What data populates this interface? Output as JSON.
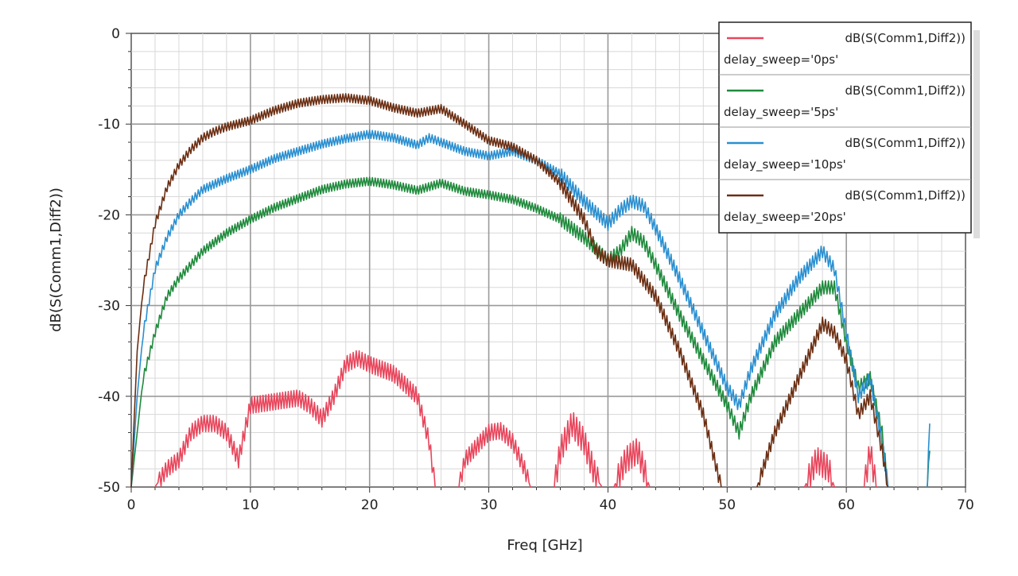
{
  "chart_data": {
    "type": "line",
    "title": "",
    "xlabel": "Freq [GHz]",
    "ylabel": "dB(S(Comm1,Diff2))",
    "xlim": [
      0,
      70
    ],
    "ylim": [
      -50,
      0
    ],
    "xticks": [
      "0",
      "10",
      "20",
      "30",
      "40",
      "50",
      "60",
      "70"
    ],
    "yticks": [
      "0",
      "-10",
      "-20",
      "-30",
      "-40",
      "-50"
    ],
    "grid": true,
    "legend_position": "top-right",
    "series": [
      {
        "name": "dB(S(Comm1,Diff2))",
        "param": "delay_sweep='0ps'",
        "color": "#e8465c",
        "points": [
          [
            2,
            -50
          ],
          [
            3,
            -48
          ],
          [
            4,
            -47
          ],
          [
            5,
            -44
          ],
          [
            6,
            -43
          ],
          [
            7,
            -43
          ],
          [
            8,
            -44
          ],
          [
            9,
            -47
          ],
          [
            9.5,
            -44
          ],
          [
            10,
            -41
          ],
          [
            12,
            -40.6
          ],
          [
            14,
            -40.2
          ],
          [
            15,
            -41
          ],
          [
            16,
            -42.5
          ],
          [
            17,
            -40
          ],
          [
            18,
            -36.5
          ],
          [
            19,
            -35.8
          ],
          [
            20,
            -36.5
          ],
          [
            22,
            -37.5
          ],
          [
            24,
            -40
          ],
          [
            25,
            -45
          ],
          [
            25.5,
            -50
          ],
          null,
          [
            27.5,
            -50
          ],
          [
            28,
            -47
          ],
          [
            30,
            -44
          ],
          [
            31,
            -43.8
          ],
          [
            32,
            -45
          ],
          [
            33,
            -48
          ],
          [
            33.5,
            -50
          ],
          null,
          [
            35.5,
            -50
          ],
          [
            36,
            -46
          ],
          [
            37,
            -43
          ],
          [
            38,
            -45
          ],
          [
            39,
            -49
          ],
          [
            39.5,
            -50
          ],
          null,
          [
            40.5,
            -50
          ],
          [
            41.5,
            -47
          ],
          [
            42.5,
            -46
          ],
          [
            43.5,
            -50
          ],
          null,
          [
            56.5,
            -50
          ],
          [
            57.5,
            -47
          ],
          [
            58.5,
            -48
          ],
          [
            59,
            -50
          ],
          null,
          [
            61.5,
            -50
          ],
          [
            62,
            -46
          ],
          [
            62.5,
            -50
          ]
        ]
      },
      {
        "name": "dB(S(Comm1,Diff2))",
        "param": "delay_sweep='5ps'",
        "color": "#1f8a3c",
        "points": [
          [
            0,
            -50
          ],
          [
            1,
            -38
          ],
          [
            2,
            -33
          ],
          [
            3,
            -29
          ],
          [
            4,
            -27
          ],
          [
            5,
            -25.5
          ],
          [
            6,
            -24
          ],
          [
            8,
            -22
          ],
          [
            10,
            -20.5
          ],
          [
            12,
            -19.2
          ],
          [
            14,
            -18.2
          ],
          [
            16,
            -17.2
          ],
          [
            18,
            -16.6
          ],
          [
            20,
            -16.3
          ],
          [
            22,
            -16.7
          ],
          [
            24,
            -17.3
          ],
          [
            26,
            -16.5
          ],
          [
            28,
            -17.4
          ],
          [
            30,
            -17.8
          ],
          [
            32,
            -18.3
          ],
          [
            34,
            -19.3
          ],
          [
            36,
            -20.5
          ],
          [
            38,
            -22.5
          ],
          [
            40,
            -25
          ],
          [
            41,
            -24
          ],
          [
            42,
            -22
          ],
          [
            43,
            -23
          ],
          [
            44,
            -25.5
          ],
          [
            46,
            -31
          ],
          [
            48,
            -36
          ],
          [
            50,
            -41
          ],
          [
            51,
            -44
          ],
          [
            52,
            -40
          ],
          [
            54,
            -34
          ],
          [
            56,
            -31
          ],
          [
            58,
            -28
          ],
          [
            59,
            -28
          ],
          [
            60,
            -34
          ],
          [
            61,
            -39
          ],
          [
            62,
            -38
          ],
          [
            63,
            -44
          ],
          [
            63.5,
            -50
          ],
          null,
          [
            66.8,
            -50
          ],
          [
            67,
            -46
          ]
        ]
      },
      {
        "name": "dB(S(Comm1,Diff2))",
        "param": "delay_sweep='10ps'",
        "color": "#2a8fd0",
        "points": [
          [
            0,
            -50
          ],
          [
            0.5,
            -40
          ],
          [
            1,
            -33
          ],
          [
            2,
            -26
          ],
          [
            3,
            -22.5
          ],
          [
            4,
            -20
          ],
          [
            5,
            -18.5
          ],
          [
            6,
            -17.2
          ],
          [
            8,
            -16
          ],
          [
            10,
            -15
          ],
          [
            12,
            -13.8
          ],
          [
            14,
            -13
          ],
          [
            16,
            -12.2
          ],
          [
            18,
            -11.6
          ],
          [
            20,
            -11.1
          ],
          [
            22,
            -11.5
          ],
          [
            24,
            -12.3
          ],
          [
            25,
            -11.5
          ],
          [
            26,
            -12
          ],
          [
            28,
            -13
          ],
          [
            30,
            -13.5
          ],
          [
            32,
            -13
          ],
          [
            34,
            -14
          ],
          [
            36,
            -15.5
          ],
          [
            38,
            -18.5
          ],
          [
            40,
            -21
          ],
          [
            41,
            -19.5
          ],
          [
            42,
            -18.5
          ],
          [
            43,
            -19
          ],
          [
            44,
            -21.5
          ],
          [
            46,
            -27
          ],
          [
            48,
            -33
          ],
          [
            50,
            -39
          ],
          [
            51,
            -41
          ],
          [
            52,
            -37
          ],
          [
            54,
            -31
          ],
          [
            56,
            -27
          ],
          [
            58,
            -24
          ],
          [
            59,
            -26
          ],
          [
            60,
            -33
          ],
          [
            61,
            -40
          ],
          [
            62,
            -38
          ],
          [
            63,
            -45
          ],
          [
            63.5,
            -50
          ],
          null,
          [
            66.8,
            -50
          ],
          [
            67,
            -43
          ]
        ]
      },
      {
        "name": "dB(S(Comm1,Diff2))",
        "param": "delay_sweep='20ps'",
        "color": "#6b2e12",
        "points": [
          [
            0,
            -50
          ],
          [
            0.5,
            -35
          ],
          [
            1,
            -28
          ],
          [
            2,
            -21
          ],
          [
            3,
            -17
          ],
          [
            4,
            -14.5
          ],
          [
            5,
            -12.8
          ],
          [
            6,
            -11.5
          ],
          [
            7,
            -10.8
          ],
          [
            8,
            -10.3
          ],
          [
            10,
            -9.6
          ],
          [
            12,
            -8.5
          ],
          [
            14,
            -7.7
          ],
          [
            16,
            -7.3
          ],
          [
            18,
            -7.1
          ],
          [
            20,
            -7.4
          ],
          [
            22,
            -8.2
          ],
          [
            24,
            -8.8
          ],
          [
            26,
            -8.3
          ],
          [
            28,
            -10
          ],
          [
            30,
            -11.8
          ],
          [
            32,
            -12.5
          ],
          [
            34,
            -14
          ],
          [
            36,
            -16.5
          ],
          [
            38,
            -20.5
          ],
          [
            39,
            -24
          ],
          [
            40,
            -25
          ],
          [
            42,
            -25.5
          ],
          [
            44,
            -29
          ],
          [
            46,
            -35
          ],
          [
            48,
            -42
          ],
          [
            49.5,
            -50
          ],
          null,
          [
            52.5,
            -50
          ],
          [
            54,
            -44
          ],
          [
            56,
            -38
          ],
          [
            58,
            -32
          ],
          [
            59,
            -33
          ],
          [
            60,
            -36
          ],
          [
            61,
            -42
          ],
          [
            62,
            -40
          ],
          [
            63,
            -46
          ],
          [
            63.5,
            -50
          ]
        ]
      }
    ]
  }
}
